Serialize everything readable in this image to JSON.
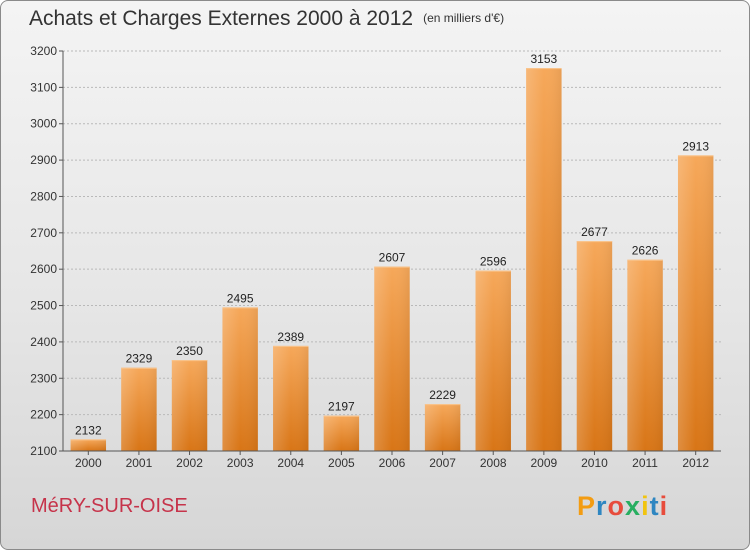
{
  "header": {
    "title": "Achats et Charges Externes 2000 à 2012",
    "subtitle": "(en milliers d'€)"
  },
  "footer": {
    "commune": "MéRY-SUR-OISE",
    "logo_letters": [
      "P",
      "r",
      "o",
      "x",
      "i",
      "t",
      "i"
    ],
    "logo_colors": [
      "#f39c12",
      "#2e86c1",
      "#e74c3c",
      "#27ae60",
      "#f1c40f",
      "#2e86c1",
      "#e74c3c"
    ]
  },
  "chart_data": {
    "type": "bar",
    "title": "Achats et Charges Externes 2000 à 2012",
    "subtitle": "(en milliers d'€)",
    "xlabel": "",
    "ylabel": "",
    "categories": [
      "2000",
      "2001",
      "2002",
      "2003",
      "2004",
      "2005",
      "2006",
      "2007",
      "2008",
      "2009",
      "2010",
      "2011",
      "2012"
    ],
    "values": [
      2132,
      2329,
      2350,
      2495,
      2389,
      2197,
      2607,
      2229,
      2596,
      3153,
      2677,
      2626,
      2913
    ],
    "ylim": [
      2100,
      3200
    ],
    "yticks": [
      2100,
      2200,
      2300,
      2400,
      2500,
      2600,
      2700,
      2800,
      2900,
      3000,
      3100,
      3200
    ],
    "grid": true,
    "bar_color": "#f08c2e",
    "data_labels": true
  }
}
